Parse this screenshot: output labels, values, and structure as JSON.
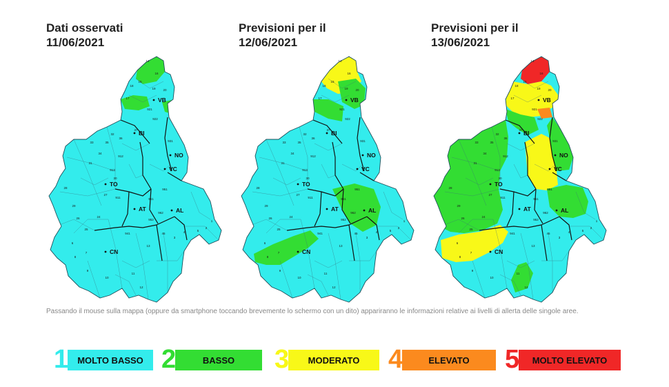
{
  "panels": [
    {
      "title_line1": "Dati osservati",
      "title_line2": "11/06/2021"
    },
    {
      "title_line1": "Previsioni per il",
      "title_line2": "12/06/2021"
    },
    {
      "title_line1": "Previsioni per il",
      "title_line2": "13/06/2021"
    }
  ],
  "map_labels": {
    "cities": [
      "VB",
      "BI",
      "NO",
      "VC",
      "TO",
      "AT",
      "AL",
      "CN"
    ],
    "zones": [
      "14",
      "15",
      "16",
      "17",
      "18",
      "19",
      "20",
      "921",
      "922",
      "931",
      "911",
      "912",
      "913",
      "951",
      "961",
      "962",
      "952",
      "941",
      "30",
      "31",
      "32",
      "33",
      "34",
      "35",
      "36",
      "37",
      "28",
      "29",
      "26",
      "27",
      "24",
      "25",
      "6",
      "7",
      "8",
      "9",
      "10",
      "11",
      "12",
      "13",
      "3",
      "4",
      "5",
      "2",
      "1",
      "45"
    ]
  },
  "caption": "Passando il mouse sulla mappa (oppure da smartphone toccando brevemente lo schermo con un dito) appariranno le informazioni relative ai livelli di allerta delle singole aree.",
  "legend": [
    {
      "number": "1",
      "label": "MOLTO BASSO",
      "color": "#33ECEC",
      "num_color": "#33ECEC"
    },
    {
      "number": "2",
      "label": "BASSO",
      "color": "#33DD33",
      "num_color": "#33DD33"
    },
    {
      "number": "3",
      "label": "MODERATO",
      "color": "#F8F818",
      "num_color": "#F8F818"
    },
    {
      "number": "4",
      "label": "ELEVATO",
      "color": "#FB8A1E",
      "num_color": "#FB8A1E"
    },
    {
      "number": "5",
      "label": "MOLTO ELEVATO",
      "color": "#F02727",
      "num_color": "#F02727"
    }
  ]
}
